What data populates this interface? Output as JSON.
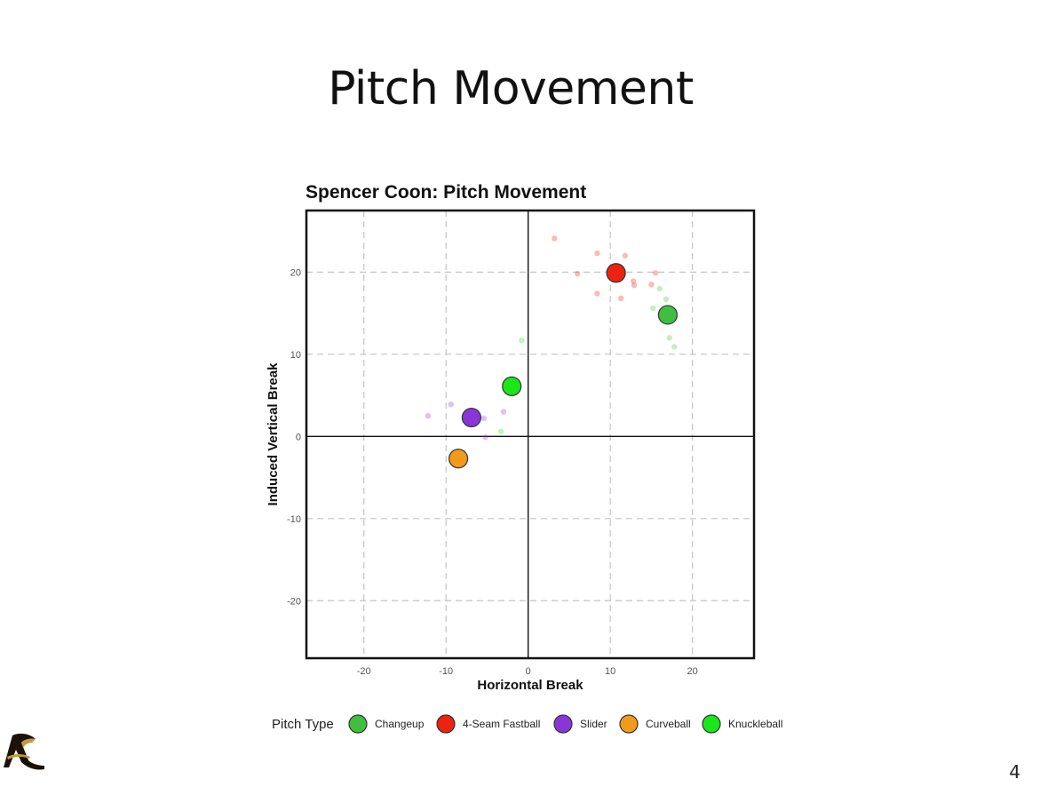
{
  "slide": {
    "title": "Pitch Movement",
    "page_number": "4"
  },
  "colors": {
    "changeup": "#3fbf3f",
    "fastball": "#ee2210",
    "slider": "#8a35d8",
    "curveball": "#f29a1a",
    "knuckleball": "#1ae61a"
  },
  "chart_data": {
    "type": "scatter",
    "title": "Spencer Coon: Pitch Movement",
    "xlabel": "Horizontal Break",
    "ylabel": "Induced Vertical Break",
    "xlim": [
      -27,
      27.5
    ],
    "ylim": [
      -27,
      27.5
    ],
    "xticks": [
      -20,
      -10,
      0,
      10,
      20
    ],
    "yticks": [
      -20,
      -10,
      0,
      10,
      20
    ],
    "grid": true,
    "legend": {
      "title": "Pitch Type",
      "placement": "bottom"
    },
    "series": [
      {
        "name": "Changeup",
        "color_key": "changeup",
        "mean": [
          17,
          14.8
        ],
        "points": [
          [
            16,
            18
          ],
          [
            16.8,
            16.7
          ],
          [
            15.2,
            15.6
          ],
          [
            17.2,
            12
          ],
          [
            17.8,
            10.9
          ]
        ]
      },
      {
        "name": "4-Seam Fastball",
        "color_key": "fastball",
        "mean": [
          10.7,
          19.9
        ],
        "points": [
          [
            3.2,
            24.1
          ],
          [
            8.4,
            22.3
          ],
          [
            11.8,
            22
          ],
          [
            6,
            19.8
          ],
          [
            15.5,
            19.9
          ],
          [
            12.8,
            18.9
          ],
          [
            12.9,
            18.4
          ],
          [
            15,
            18.5
          ],
          [
            8.4,
            17.4
          ],
          [
            11.3,
            16.8
          ]
        ]
      },
      {
        "name": "Slider",
        "color_key": "slider",
        "mean": [
          -6.9,
          2.3
        ],
        "points": [
          [
            -12.2,
            2.5
          ],
          [
            -9.4,
            3.9
          ],
          [
            -3,
            3
          ],
          [
            -5.4,
            2.2
          ],
          [
            -5.2,
            -0.1
          ]
        ]
      },
      {
        "name": "Curveball",
        "color_key": "curveball",
        "mean": [
          -8.5,
          -2.7
        ],
        "points": []
      },
      {
        "name": "Knuckleball",
        "color_key": "knuckleball",
        "mean": [
          -2,
          6.1
        ],
        "points": [
          [
            -0.8,
            11.7
          ],
          [
            -3.3,
            0.6
          ]
        ]
      }
    ]
  }
}
